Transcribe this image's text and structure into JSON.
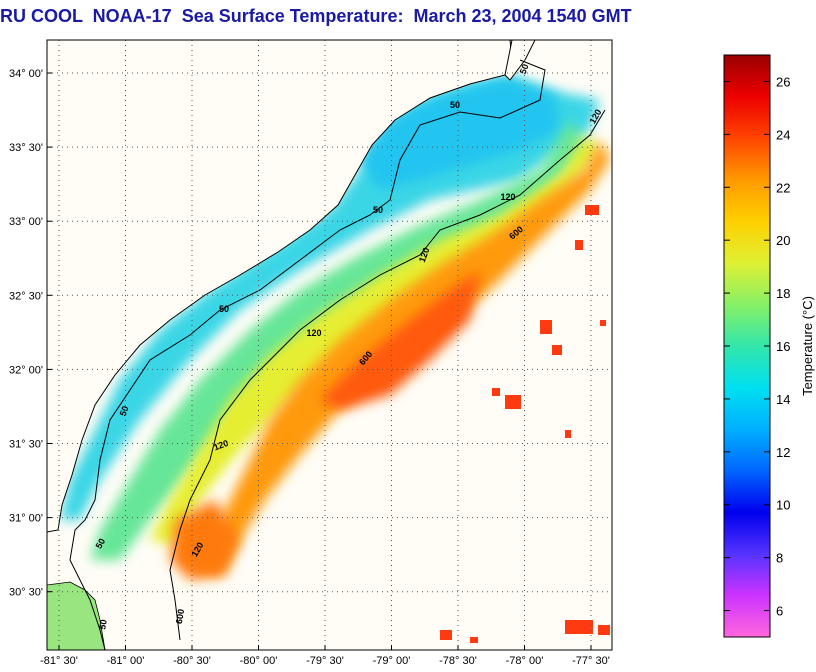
{
  "title": "RU COOL  NOAA-17  Sea Surface Temperature:  March 23, 2004 1540 GMT",
  "map": {
    "lon_ticks": [
      "-81° 30'",
      "-81° 00'",
      "-80° 30'",
      "-80° 00'",
      "-79° 30'",
      "-79° 00'",
      "-78° 30'",
      "-78° 00'",
      "-77° 30'"
    ],
    "lat_ticks": [
      "34° 00'",
      "33° 30'",
      "33° 00'",
      "32° 30'",
      "32° 00'",
      "31° 30'",
      "31° 00'",
      "30° 30'"
    ],
    "contour_labels": [
      "50",
      "50",
      "50",
      "50",
      "50",
      "50",
      "50",
      "120",
      "120",
      "120",
      "120",
      "120",
      "120",
      "600",
      "600",
      "600"
    ]
  },
  "colorbar": {
    "label": "Temperature (°C)",
    "ticks": [
      "26",
      "24",
      "22",
      "20",
      "18",
      "16",
      "14",
      "12",
      "10",
      "8",
      "6"
    ],
    "range": [
      5,
      27
    ],
    "colors": [
      "#ff66dd",
      "#cc33ff",
      "#5533ff",
      "#0000ee",
      "#0066ff",
      "#00b0ff",
      "#00e0f0",
      "#33e6aa",
      "#88f066",
      "#dff033",
      "#ffd000",
      "#ff9900",
      "#ff4400",
      "#ee0000",
      "#990000"
    ]
  }
}
